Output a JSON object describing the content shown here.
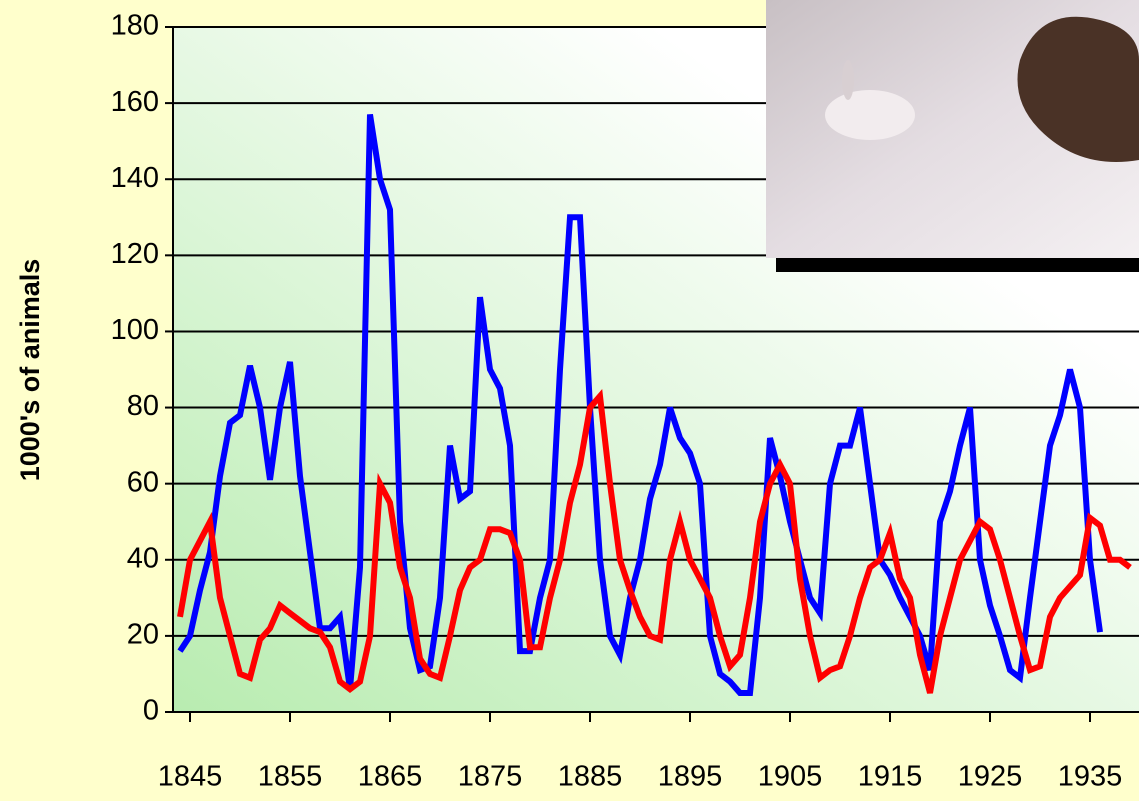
{
  "chart_data": {
    "type": "line",
    "y_label": "1000's of animals",
    "x": [
      1844,
      1845,
      1846,
      1847,
      1848,
      1849,
      1850,
      1851,
      1852,
      1853,
      1854,
      1855,
      1856,
      1857,
      1858,
      1859,
      1860,
      1861,
      1862,
      1863,
      1864,
      1865,
      1866,
      1867,
      1868,
      1869,
      1870,
      1871,
      1872,
      1873,
      1874,
      1875,
      1876,
      1877,
      1878,
      1879,
      1880,
      1881,
      1882,
      1883,
      1884,
      1885,
      1886,
      1887,
      1888,
      1889,
      1890,
      1891,
      1892,
      1893,
      1894,
      1895,
      1896,
      1897,
      1898,
      1899,
      1900,
      1901,
      1902,
      1903,
      1904,
      1905,
      1906,
      1907,
      1908,
      1909,
      1910,
      1911,
      1912,
      1913,
      1914,
      1915,
      1916,
      1917,
      1918,
      1919,
      1920,
      1921,
      1922,
      1923,
      1924,
      1925,
      1926,
      1927,
      1928,
      1929,
      1930,
      1931,
      1932,
      1933,
      1934,
      1935,
      1936,
      1937,
      1938,
      1939
    ],
    "series": [
      {
        "color": "#0000ff",
        "values": [
          16,
          20,
          32,
          42,
          62,
          76,
          78,
          91,
          80,
          61,
          80,
          92,
          62,
          42,
          22,
          22,
          25,
          6,
          38,
          157,
          140,
          132,
          50,
          22,
          11,
          12,
          30,
          70,
          56,
          58,
          109,
          90,
          85,
          70,
          16,
          16,
          30,
          40,
          90,
          130,
          130,
          80,
          40,
          20,
          15,
          30,
          40,
          56,
          65,
          80,
          72,
          68,
          60,
          20,
          10,
          8,
          5,
          5,
          30,
          72,
          62,
          50,
          40,
          30,
          26,
          60,
          70,
          70,
          80,
          60,
          40,
          36,
          30,
          25,
          20,
          11,
          50,
          58,
          70,
          80,
          40,
          28,
          20,
          11,
          9,
          30,
          50,
          70,
          78,
          90,
          80,
          40,
          21,
          null,
          null,
          null
        ]
      },
      {
        "color": "#ff0000",
        "values": [
          25,
          40,
          45,
          50,
          30,
          20,
          10,
          9,
          19,
          22,
          28,
          26,
          24,
          22,
          21,
          17,
          8,
          6,
          8,
          20,
          60,
          55,
          38,
          30,
          14,
          10,
          9,
          20,
          32,
          38,
          40,
          48,
          48,
          47,
          40,
          17,
          17,
          30,
          40,
          55,
          65,
          80,
          83,
          60,
          40,
          32,
          25,
          20,
          19,
          40,
          50,
          40,
          35,
          30,
          20,
          12,
          15,
          30,
          50,
          60,
          65,
          60,
          35,
          20,
          9,
          11,
          12,
          20,
          30,
          38,
          40,
          47,
          35,
          30,
          15,
          5,
          20,
          30,
          40,
          45,
          50,
          48,
          40,
          30,
          20,
          11,
          12,
          25,
          30,
          33,
          36,
          51,
          49,
          40,
          40,
          38
        ]
      }
    ],
    "xlim": [
      1843.3,
      1939.9
    ],
    "xticks": [
      1845,
      1855,
      1865,
      1875,
      1885,
      1895,
      1905,
      1915,
      1925,
      1935
    ],
    "ylim": [
      0,
      180
    ],
    "yticks": [
      0,
      20,
      40,
      60,
      80,
      100,
      120,
      140,
      160,
      180
    ],
    "grid": true
  }
}
